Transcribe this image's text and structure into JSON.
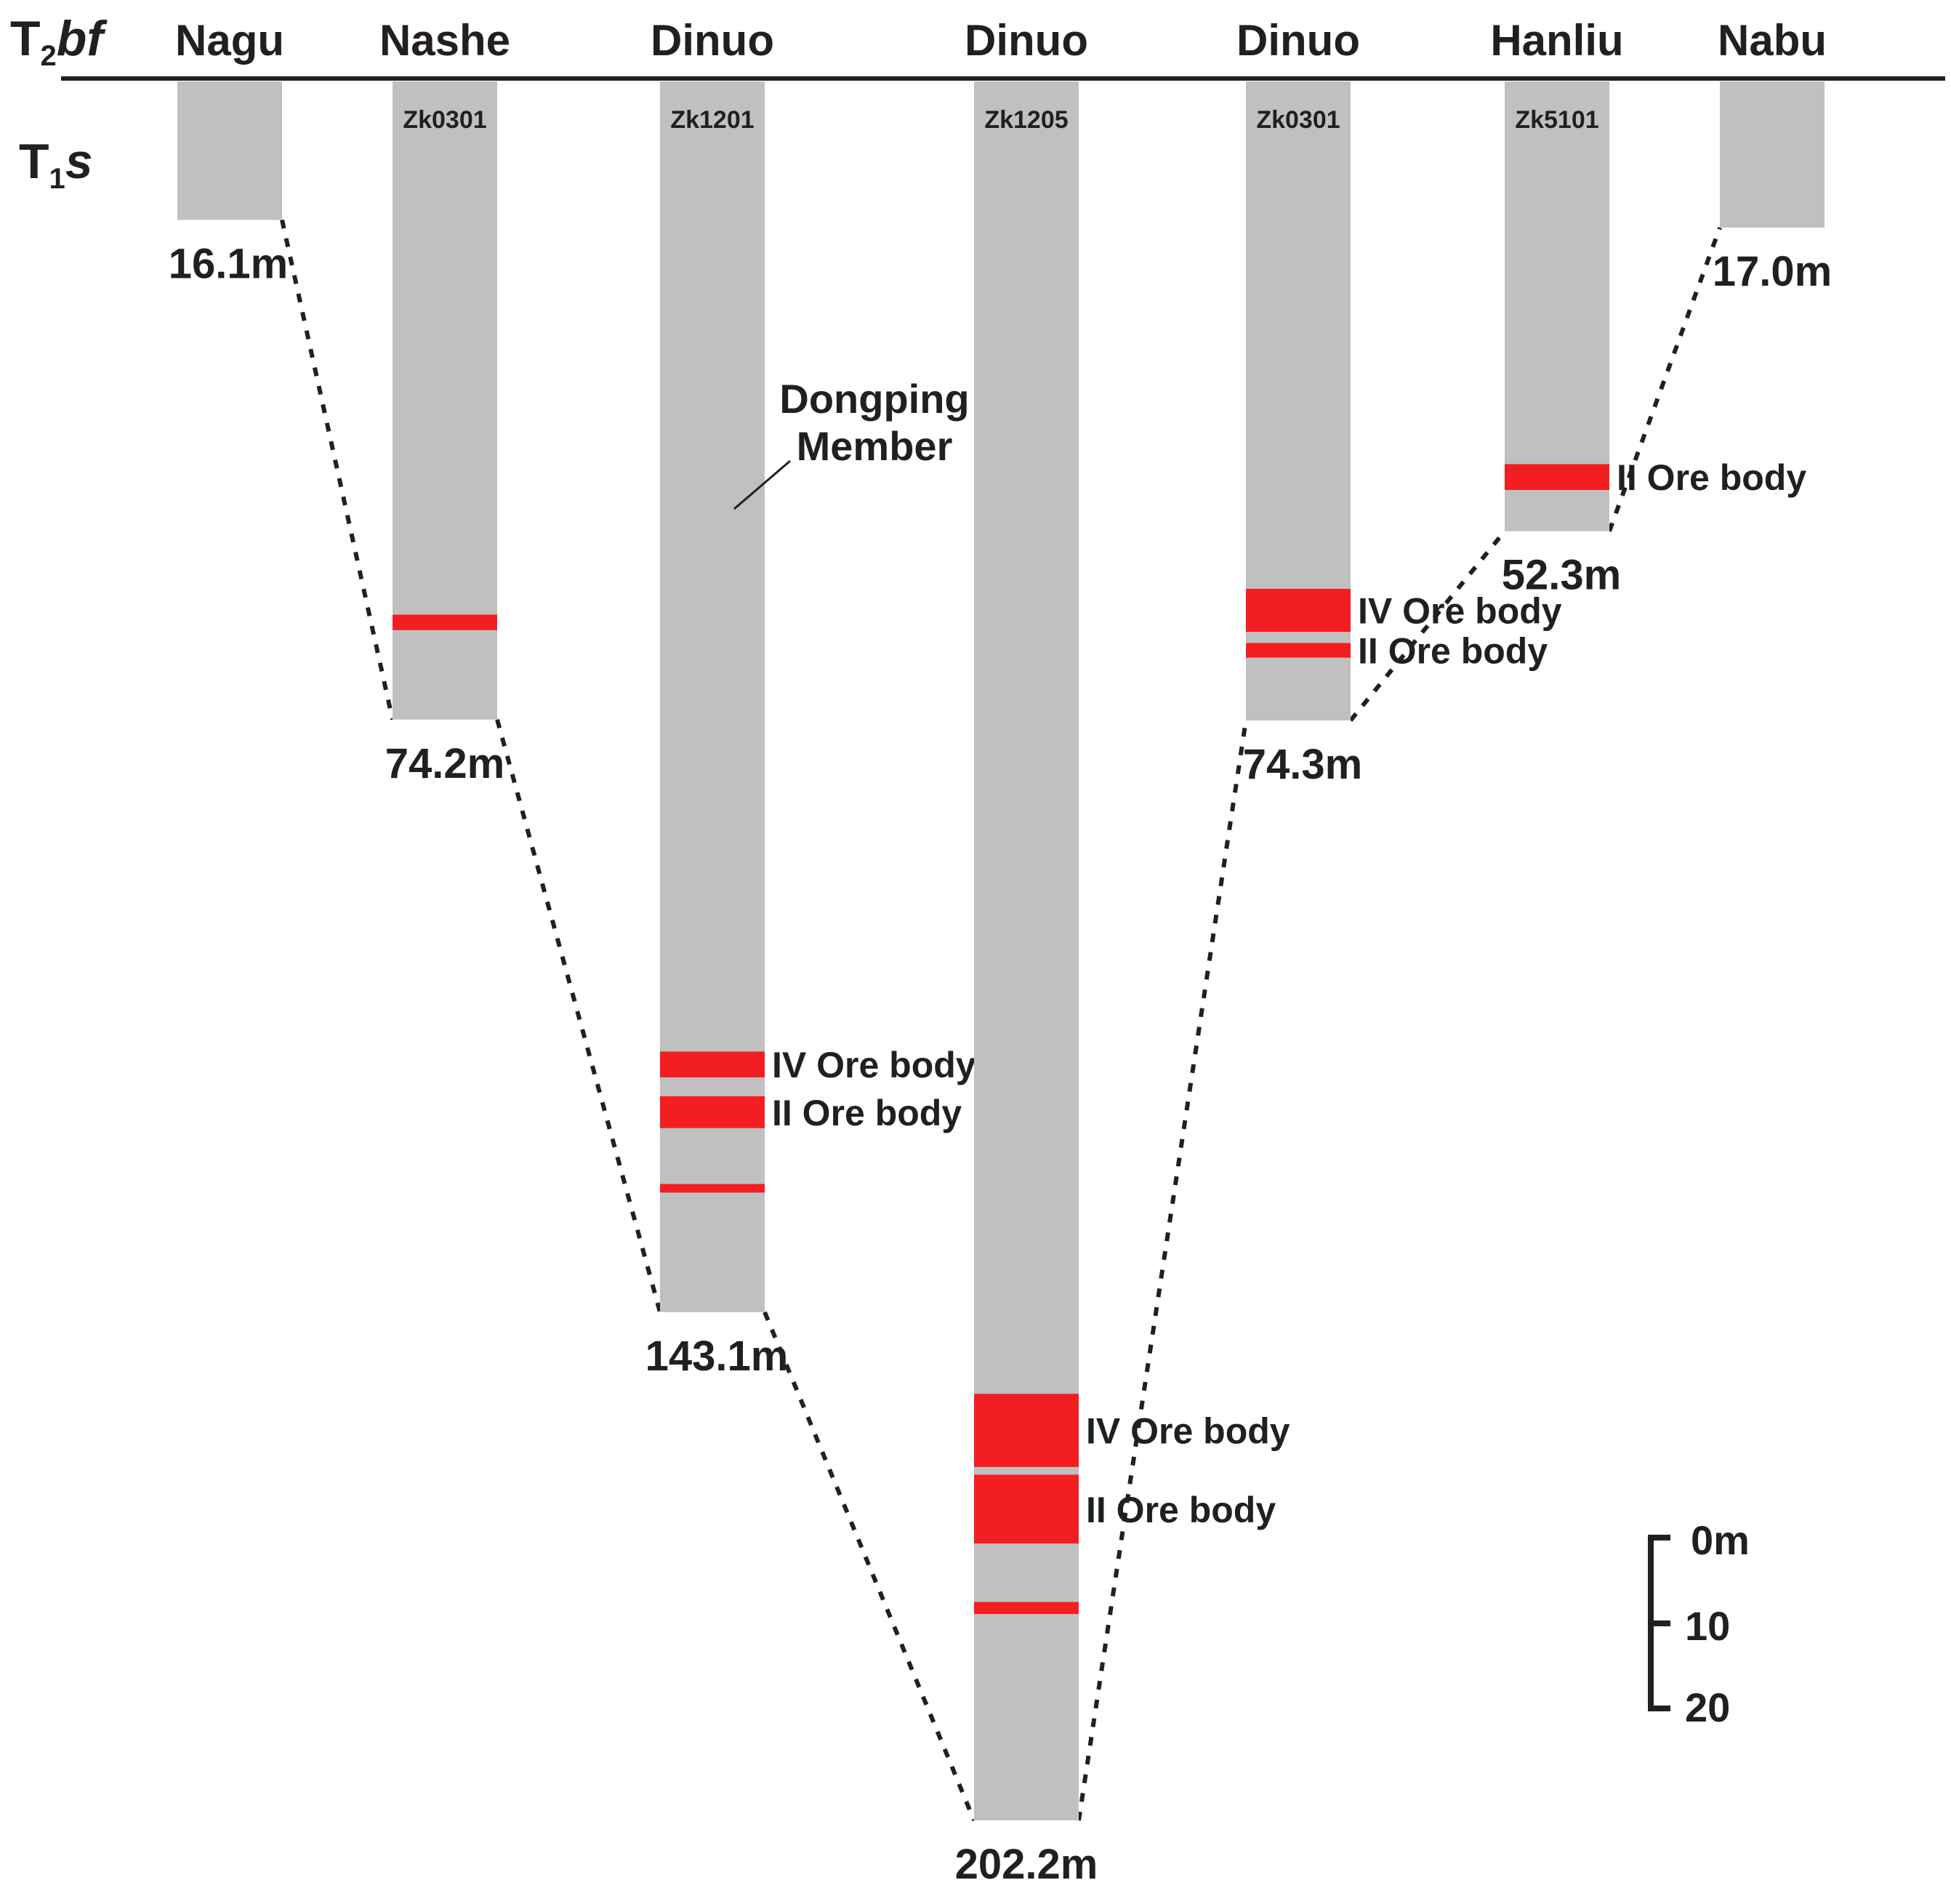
{
  "strata": {
    "upper": {
      "base": "T",
      "sub": "2",
      "italic": "bf"
    },
    "lower": {
      "base": "T",
      "sub": "1",
      "italic": "s"
    }
  },
  "member_label": [
    "Dongping",
    "Member"
  ],
  "columns": [
    {
      "locality": "Nagu",
      "drill_hole": "",
      "thickness_m": 16.1,
      "thickness_label": "16.1m",
      "ore_bodies": []
    },
    {
      "locality": "Nashe",
      "drill_hole": "Zk0301",
      "thickness_m": 74.2,
      "thickness_label": "74.2m",
      "ore_bodies": [
        {
          "label": "",
          "top_m": 62.0,
          "bottom_m": 63.8
        }
      ]
    },
    {
      "locality": "Dinuo",
      "drill_hole": "Zk1201",
      "thickness_m": 143.1,
      "thickness_label": "143.1m",
      "ore_bodies": [
        {
          "label": "IV Ore body",
          "top_m": 112.8,
          "bottom_m": 115.8
        },
        {
          "label": "II Ore body",
          "top_m": 118.0,
          "bottom_m": 121.7
        },
        {
          "label": "",
          "top_m": 128.2,
          "bottom_m": 129.2
        }
      ]
    },
    {
      "locality": "Dinuo",
      "drill_hole": "Zk1205",
      "thickness_m": 202.2,
      "thickness_label": "202.2m",
      "ore_bodies": [
        {
          "label": "IV Ore body",
          "top_m": 152.6,
          "bottom_m": 161.1
        },
        {
          "label": "II Ore body",
          "top_m": 162.0,
          "bottom_m": 170.0
        },
        {
          "label": "",
          "top_m": 176.8,
          "bottom_m": 178.2
        }
      ]
    },
    {
      "locality": "Dinuo",
      "drill_hole": "Zk0301",
      "thickness_m": 74.3,
      "thickness_label": "74.3m",
      "ore_bodies": [
        {
          "label": "IV Ore body",
          "top_m": 59.0,
          "bottom_m": 64.0
        },
        {
          "label": "II Ore body",
          "top_m": 65.3,
          "bottom_m": 67.0
        }
      ]
    },
    {
      "locality": "Hanliu",
      "drill_hole": "Zk5101",
      "thickness_m": 52.3,
      "thickness_label": "52.3m",
      "ore_bodies": [
        {
          "label": "II Ore body",
          "top_m": 44.5,
          "bottom_m": 47.5
        }
      ]
    },
    {
      "locality": "Nabu",
      "drill_hole": "",
      "thickness_m": 17.0,
      "thickness_label": "17.0m",
      "ore_bodies": []
    }
  ],
  "scale_bar": {
    "labels": [
      "0m",
      "10",
      "20"
    ],
    "interval_m": 10
  },
  "colors": {
    "column": "#c0c0c0",
    "ore": "#f31e22",
    "line": "#231f20",
    "text": "#231f20"
  }
}
